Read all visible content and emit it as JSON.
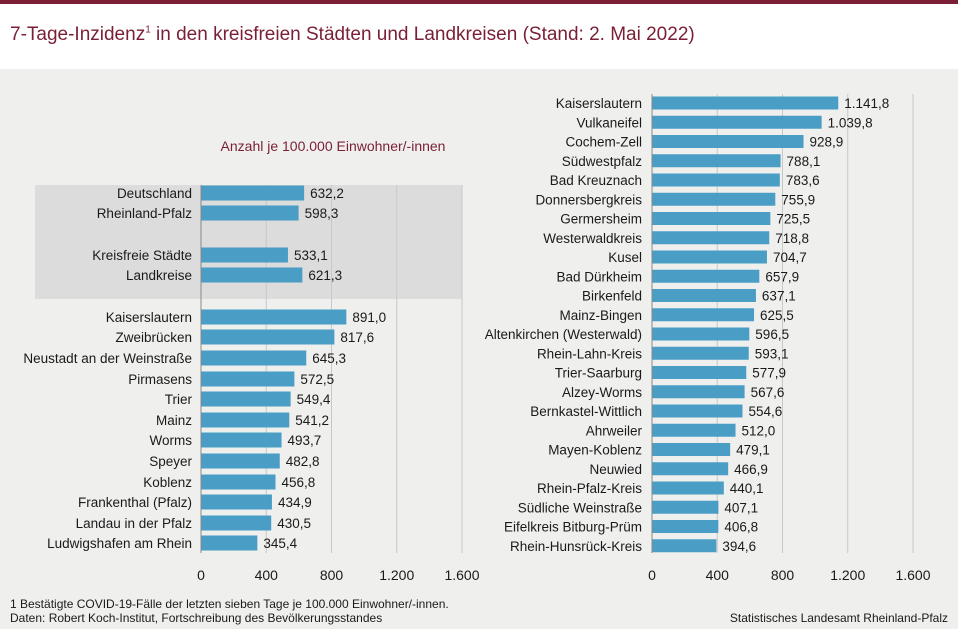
{
  "title": "7-Tage-Inzidenz",
  "title_sup": "1",
  "title_rest": " in den kreisfreien Städten und Landkreisen (Stand: 2. Mai 2022)",
  "footnote": "1 Bestätigte COVID-19-Fälle  der letzten sieben Tage  je 100.000  Einwohner/-innen.",
  "data_source": "Daten:  Robert  Koch-Institut,  Fortschreibung  des Bevölkerungsstandes",
  "publisher": "Statistisches Landesamt  Rheinland-Pfalz",
  "colors": {
    "bar": "#4a9dc5",
    "accent": "#7a1f35",
    "panel": "#efefee",
    "highlight": "#dcdcdc"
  },
  "chart_data": [
    {
      "type": "bar",
      "orientation": "horizontal",
      "unit_label": "Anzahl je 100.000 Einwohner/-innen",
      "xlim": [
        0,
        1600
      ],
      "xticks": [
        "0",
        "400",
        "800",
        "1.200",
        "1.600"
      ],
      "highlighted": [
        "Deutschland",
        "Rheinland-Pfalz",
        "Kreisfreie Städte",
        "Landkreise"
      ],
      "categories": [
        "Deutschland",
        "Rheinland-Pfalz",
        "Kreisfreie Städte",
        "Landkreise",
        "Kaiserslautern",
        "Zweibrücken",
        "Neustadt an der Weinstraße",
        "Pirmasens",
        "Trier",
        "Mainz",
        "Worms",
        "Speyer",
        "Koblenz",
        "Frankenthal (Pfalz)",
        "Landau in der Pfalz",
        "Ludwigshafen am Rhein"
      ],
      "values": [
        632.2,
        598.3,
        533.1,
        621.3,
        891.0,
        817.6,
        645.3,
        572.5,
        549.4,
        541.2,
        493.7,
        482.8,
        456.8,
        434.9,
        430.5,
        345.4
      ],
      "value_labels": [
        "632,2",
        "598,3",
        "533,1",
        "621,3",
        "891,0",
        "817,6",
        "645,3",
        "572,5",
        "549,4",
        "541,2",
        "493,7",
        "482,8",
        "456,8",
        "434,9",
        "430,5",
        "345,4"
      ]
    },
    {
      "type": "bar",
      "orientation": "horizontal",
      "xlim": [
        0,
        1600
      ],
      "xticks": [
        "0",
        "400",
        "800",
        "1.200",
        "1.600"
      ],
      "categories": [
        "Kaiserslautern",
        "Vulkaneifel",
        "Cochem-Zell",
        "Südwestpfalz",
        "Bad Kreuznach",
        "Donnersbergkreis",
        "Germersheim",
        "Westerwaldkreis",
        "Kusel",
        "Bad Dürkheim",
        "Birkenfeld",
        "Mainz-Bingen",
        "Altenkirchen (Westerwald)",
        "Rhein-Lahn-Kreis",
        "Trier-Saarburg",
        "Alzey-Worms",
        "Bernkastel-Wittlich",
        "Ahrweiler",
        "Mayen-Koblenz",
        "Neuwied",
        "Rhein-Pfalz-Kreis",
        "Südliche Weinstraße",
        "Eifelkreis Bitburg-Prüm",
        "Rhein-Hunsrück-Kreis"
      ],
      "values": [
        1141.8,
        1039.8,
        928.9,
        788.1,
        783.6,
        755.9,
        725.5,
        718.8,
        704.7,
        657.9,
        637.1,
        625.5,
        596.5,
        593.1,
        577.9,
        567.6,
        554.6,
        512.0,
        479.1,
        466.9,
        440.1,
        407.1,
        406.8,
        394.6
      ],
      "value_labels": [
        "1.141,8",
        "1.039,8",
        "928,9",
        "788,1",
        "783,6",
        "755,9",
        "725,5",
        "718,8",
        "704,7",
        "657,9",
        "637,1",
        "625,5",
        "596,5",
        "593,1",
        "577,9",
        "567,6",
        "554,6",
        "512,0",
        "479,1",
        "466,9",
        "440,1",
        "407,1",
        "406,8",
        "394,6"
      ]
    }
  ]
}
